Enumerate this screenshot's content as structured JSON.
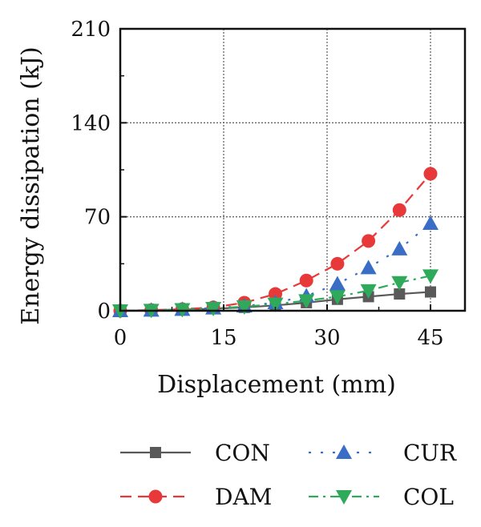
{
  "chart_data": {
    "type": "line",
    "title": "",
    "xlabel": "Displacement (mm)",
    "ylabel": "Energy dissipation (kJ)",
    "xlim": [
      0,
      50
    ],
    "ylim": [
      0,
      210
    ],
    "xticks": [
      0,
      15,
      30,
      45
    ],
    "yticks": [
      0,
      70,
      140,
      210
    ],
    "xtick_labels": [
      "0",
      "15",
      "30",
      "45"
    ],
    "ytick_labels": [
      "0",
      "70",
      "140",
      "210"
    ],
    "grid": true,
    "legend_position": "bottom",
    "series": [
      {
        "name": "CON",
        "color": "#595959",
        "marker": "square",
        "line_style": "solid",
        "x": [
          0,
          4.5,
          9,
          13.5,
          18,
          22.5,
          27,
          31.5,
          36,
          40.5,
          45
        ],
        "y": [
          0,
          0.3,
          0.8,
          1.5,
          2.5,
          4,
          6,
          8.5,
          10.5,
          12.5,
          14
        ]
      },
      {
        "name": "DAM",
        "color": "#e8393a",
        "marker": "circle",
        "line_style": "dashed",
        "x": [
          0,
          4.5,
          9,
          13.5,
          18,
          22.5,
          27,
          31.5,
          36,
          40.5,
          45
        ],
        "y": [
          0,
          0.5,
          1.2,
          2.5,
          6,
          12.5,
          22.5,
          35,
          52,
          75,
          102
        ]
      },
      {
        "name": "CUR",
        "color": "#3a6ec6",
        "marker": "triangle-up",
        "line_style": "dotted",
        "x": [
          0,
          4.5,
          9,
          13.5,
          18,
          22.5,
          27,
          31.5,
          36,
          40.5,
          45
        ],
        "y": [
          0,
          0.4,
          1,
          2,
          3.5,
          6,
          11,
          20,
          32,
          46,
          65
        ]
      },
      {
        "name": "COL",
        "color": "#2eaa5a",
        "marker": "triangle-down",
        "line_style": "dashdot",
        "x": [
          0,
          4.5,
          9,
          13.5,
          18,
          22.5,
          27,
          31.5,
          36,
          40.5,
          45
        ],
        "y": [
          0,
          0.4,
          0.9,
          1.8,
          3,
          5,
          7.5,
          10.5,
          15,
          21,
          26
        ]
      }
    ]
  }
}
